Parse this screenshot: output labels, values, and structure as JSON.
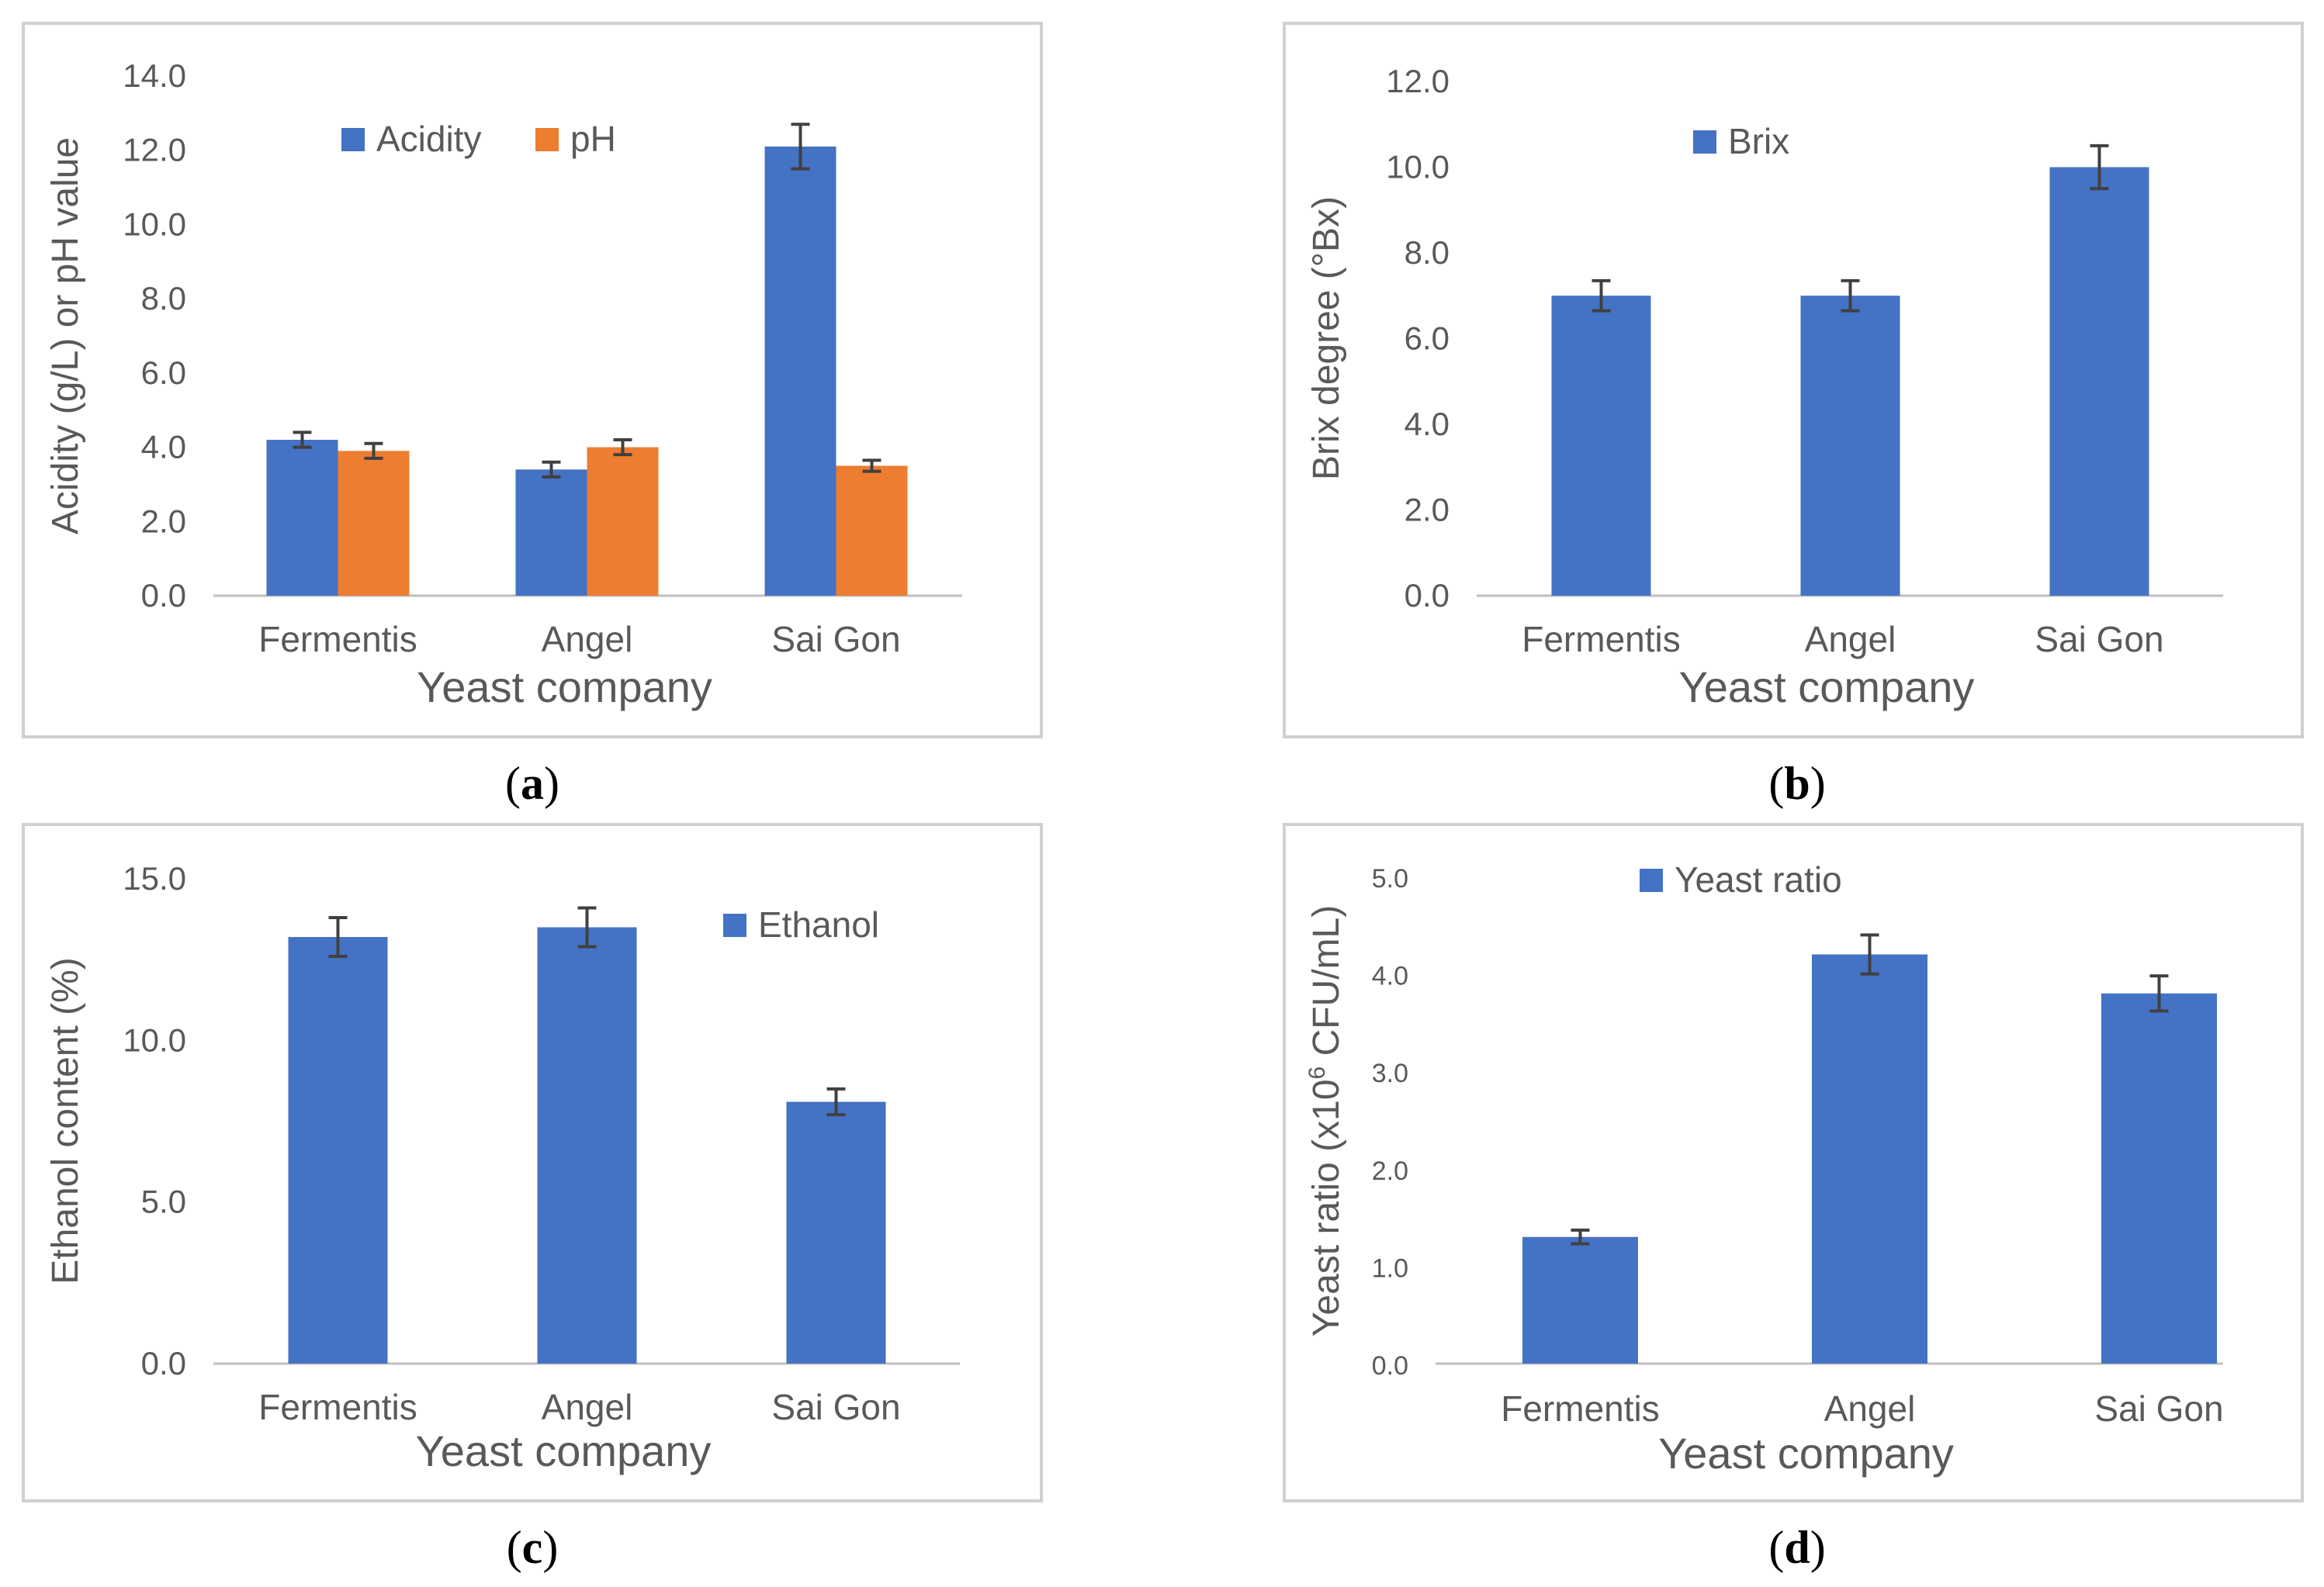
{
  "chart_data": [
    {
      "type": "bar",
      "panel": "a",
      "categories": [
        "Fermentis",
        "Angel",
        "Sai Gon"
      ],
      "series": [
        {
          "name": "Acidity",
          "color": "#4472C4",
          "values": [
            4.2,
            3.4,
            12.1
          ],
          "errors": [
            0.2,
            0.2,
            0.6
          ]
        },
        {
          "name": "pH",
          "color": "#ED7D31",
          "values": [
            3.9,
            4.0,
            3.5
          ],
          "errors": [
            0.2,
            0.2,
            0.15
          ]
        }
      ],
      "title": "",
      "xlabel": "Yeast company",
      "ylabel": "Acidity (g/L) or pH value",
      "ylim": [
        0,
        14
      ],
      "yticks": [
        "0.0",
        "2.0",
        "4.0",
        "6.0",
        "8.0",
        "10.0",
        "12.0",
        "14.0"
      ],
      "legend": "top-left"
    },
    {
      "type": "bar",
      "panel": "b",
      "categories": [
        "Fermentis",
        "Angel",
        "Sai Gon"
      ],
      "series": [
        {
          "name": "Brix",
          "color": "#4472C4",
          "values": [
            7.0,
            7.0,
            10.0
          ],
          "errors": [
            0.35,
            0.35,
            0.5
          ]
        }
      ],
      "title": "",
      "xlabel": "Yeast company",
      "ylabel": "Brix degree (°Bx)",
      "ylim": [
        0,
        12
      ],
      "yticks": [
        "0.0",
        "2.0",
        "4.0",
        "6.0",
        "8.0",
        "10.0",
        "12.0"
      ],
      "legend": "top-center"
    },
    {
      "type": "bar",
      "panel": "c",
      "categories": [
        "Fermentis",
        "Angel",
        "Sai Gon"
      ],
      "series": [
        {
          "name": "Ethanol",
          "color": "#4472C4",
          "values": [
            13.2,
            13.5,
            8.1
          ],
          "errors": [
            0.6,
            0.6,
            0.4
          ]
        }
      ],
      "title": "",
      "xlabel": "Yeast company",
      "ylabel": "Ethanol content (%)",
      "ylim": [
        0,
        15
      ],
      "yticks": [
        "0.0",
        "5.0",
        "10.0",
        "15.0"
      ],
      "legend": "top-right"
    },
    {
      "type": "bar",
      "panel": "d",
      "categories": [
        "Fermentis",
        "Angel",
        "Sai Gon"
      ],
      "series": [
        {
          "name": "Yeast ratio",
          "color": "#4472C4",
          "values": [
            1.3,
            4.2,
            3.8
          ],
          "errors": [
            0.07,
            0.2,
            0.18
          ]
        }
      ],
      "title": "",
      "xlabel": "Yeast company",
      "ylabel_main": "Yeast ratio (x10",
      "ylabel_sup": "6",
      "ylabel_tail": " CFU/mL)",
      "ylim": [
        0,
        5
      ],
      "yticks": [
        "0.0",
        "1.0",
        "2.0",
        "3.0",
        "4.0",
        "5.0"
      ],
      "legend": "top-left"
    }
  ],
  "captions": {
    "a": {
      "open": "(",
      "letter": "a",
      "close": ")"
    },
    "b": {
      "open": "(",
      "letter": "b",
      "close": ")"
    },
    "c": {
      "open": "(",
      "letter": "c",
      "close": ")"
    },
    "d": {
      "open": "(",
      "letter": "d",
      "close": ")"
    }
  }
}
